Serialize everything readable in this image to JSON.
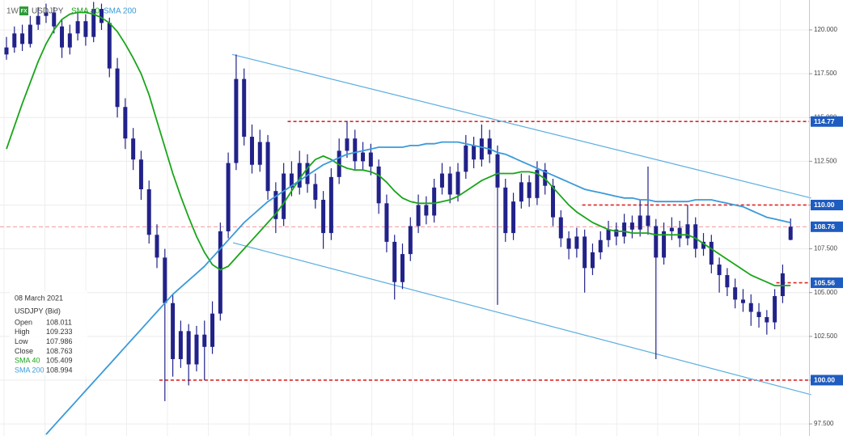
{
  "chart_data": {
    "type": "candlestick",
    "timeframe": "1W",
    "icon": "FX",
    "symbol": "USDJPY",
    "bar_color": "#22228a",
    "ylim": [
      96.81,
      121.71
    ],
    "yticks": [
      {
        "value": 120,
        "label": "120.000"
      },
      {
        "value": 117.5,
        "label": "117.500"
      },
      {
        "value": 115,
        "label": "115.000"
      },
      {
        "value": 112.5,
        "label": "112.500"
      },
      {
        "value": 110,
        "label": "110.000"
      },
      {
        "value": 107.5,
        "label": "107.500"
      },
      {
        "value": 105,
        "label": "105.000"
      },
      {
        "value": 102.5,
        "label": "102.500"
      },
      {
        "value": 100,
        "label": "100.000"
      },
      {
        "value": 97.5,
        "label": "97.500"
      }
    ],
    "grid": true,
    "ohlc": [
      [
        118.6,
        119.6,
        118.3,
        119.0
      ],
      [
        119.0,
        120.2,
        118.7,
        119.8
      ],
      [
        119.8,
        120.3,
        118.8,
        119.2
      ],
      [
        119.2,
        120.8,
        119.0,
        120.3
      ],
      [
        120.3,
        121.3,
        120.0,
        120.8
      ],
      [
        120.8,
        121.5,
        120.4,
        121.0
      ],
      [
        121.0,
        121.3,
        119.8,
        120.2
      ],
      [
        120.2,
        120.6,
        118.4,
        119.0
      ],
      [
        119.0,
        120.3,
        118.6,
        119.8
      ],
      [
        119.8,
        121.0,
        119.4,
        120.5
      ],
      [
        120.5,
        120.9,
        119.1,
        119.6
      ],
      [
        119.6,
        121.6,
        119.3,
        121.2
      ],
      [
        121.2,
        121.5,
        120.0,
        120.4
      ],
      [
        120.4,
        120.7,
        117.3,
        117.8
      ],
      [
        117.8,
        118.4,
        115.0,
        115.6
      ],
      [
        115.6,
        116.1,
        113.2,
        113.8
      ],
      [
        113.8,
        114.4,
        112.0,
        112.6
      ],
      [
        112.6,
        113.1,
        110.3,
        110.9
      ],
      [
        110.9,
        111.4,
        107.8,
        108.3
      ],
      [
        108.3,
        108.9,
        106.4,
        107.0
      ],
      [
        107.0,
        107.5,
        98.8,
        104.4
      ],
      [
        104.4,
        104.9,
        100.2,
        101.2
      ],
      [
        101.2,
        103.4,
        100.7,
        102.8
      ],
      [
        102.8,
        103.2,
        99.7,
        100.9
      ],
      [
        100.9,
        103.1,
        100.5,
        102.6
      ],
      [
        102.6,
        103.4,
        100.0,
        101.9
      ],
      [
        101.9,
        104.5,
        101.5,
        103.8
      ],
      [
        103.8,
        109.0,
        103.4,
        108.5
      ],
      [
        108.5,
        113.0,
        108.1,
        112.4
      ],
      [
        112.4,
        118.6,
        112.0,
        117.2
      ],
      [
        117.2,
        117.8,
        113.4,
        113.9
      ],
      [
        113.9,
        114.6,
        111.8,
        112.3
      ],
      [
        112.3,
        114.3,
        111.9,
        113.6
      ],
      [
        113.6,
        114.0,
        110.3,
        110.8
      ],
      [
        110.8,
        111.3,
        108.4,
        109.2
      ],
      [
        109.2,
        112.4,
        108.8,
        111.8
      ],
      [
        111.8,
        112.5,
        110.5,
        111.0
      ],
      [
        111.0,
        113.1,
        110.6,
        112.4
      ],
      [
        112.4,
        112.9,
        110.7,
        111.2
      ],
      [
        111.2,
        111.8,
        109.8,
        110.3
      ],
      [
        110.3,
        110.8,
        107.5,
        108.4
      ],
      [
        108.4,
        112.1,
        108.0,
        111.6
      ],
      [
        111.6,
        113.8,
        111.2,
        113.1
      ],
      [
        113.1,
        114.8,
        112.7,
        113.8
      ],
      [
        113.8,
        114.3,
        112.0,
        112.5
      ],
      [
        112.5,
        113.6,
        112.0,
        113.0
      ],
      [
        113.0,
        113.5,
        111.7,
        112.2
      ],
      [
        112.2,
        112.6,
        109.5,
        110.1
      ],
      [
        110.1,
        110.6,
        107.3,
        107.9
      ],
      [
        107.9,
        108.3,
        104.6,
        105.6
      ],
      [
        105.6,
        107.8,
        105.2,
        107.2
      ],
      [
        107.2,
        109.3,
        106.8,
        108.8
      ],
      [
        108.8,
        110.6,
        108.4,
        110.0
      ],
      [
        110.0,
        110.5,
        108.9,
        109.4
      ],
      [
        109.4,
        111.5,
        109.0,
        111.0
      ],
      [
        111.0,
        112.4,
        110.6,
        111.8
      ],
      [
        111.8,
        112.2,
        110.1,
        110.6
      ],
      [
        110.6,
        112.4,
        110.2,
        111.9
      ],
      [
        111.9,
        114.0,
        111.5,
        113.4
      ],
      [
        113.4,
        113.9,
        112.1,
        112.6
      ],
      [
        112.6,
        114.6,
        112.2,
        113.8
      ],
      [
        113.8,
        114.3,
        112.4,
        112.9
      ],
      [
        112.9,
        113.4,
        104.3,
        111.0
      ],
      [
        111.0,
        111.5,
        107.9,
        108.4
      ],
      [
        108.4,
        110.7,
        108.0,
        110.2
      ],
      [
        110.2,
        111.8,
        109.8,
        111.3
      ],
      [
        111.3,
        111.7,
        109.9,
        110.4
      ],
      [
        110.4,
        112.5,
        110.0,
        112.0
      ],
      [
        112.0,
        112.4,
        110.6,
        111.1
      ],
      [
        111.1,
        111.5,
        108.8,
        109.3
      ],
      [
        109.3,
        109.7,
        107.6,
        108.1
      ],
      [
        108.1,
        108.5,
        106.9,
        107.5
      ],
      [
        107.5,
        108.7,
        107.0,
        108.2
      ],
      [
        108.2,
        108.6,
        105.0,
        106.4
      ],
      [
        106.4,
        107.8,
        106.0,
        107.3
      ],
      [
        107.3,
        108.5,
        106.9,
        108.0
      ],
      [
        108.0,
        109.1,
        107.6,
        108.6
      ],
      [
        108.6,
        109.0,
        107.7,
        108.2
      ],
      [
        108.2,
        109.5,
        107.8,
        109.0
      ],
      [
        109.0,
        109.4,
        108.1,
        108.6
      ],
      [
        108.6,
        110.3,
        108.2,
        109.4
      ],
      [
        109.4,
        112.2,
        108.3,
        108.8
      ],
      [
        108.8,
        109.2,
        101.2,
        107.0
      ],
      [
        107.0,
        109.0,
        106.6,
        108.5
      ],
      [
        108.5,
        109.3,
        108.0,
        108.7
      ],
      [
        108.7,
        109.1,
        107.6,
        108.1
      ],
      [
        108.1,
        110.0,
        107.7,
        108.9
      ],
      [
        108.9,
        109.3,
        107.0,
        107.5
      ],
      [
        107.5,
        108.4,
        107.1,
        107.9
      ],
      [
        107.9,
        108.3,
        106.1,
        106.6
      ],
      [
        106.6,
        107.0,
        105.0,
        106.0
      ],
      [
        106.0,
        106.4,
        104.8,
        105.3
      ],
      [
        105.3,
        105.8,
        104.1,
        104.6
      ],
      [
        104.6,
        105.2,
        103.9,
        104.4
      ],
      [
        104.4,
        104.9,
        103.1,
        103.9
      ],
      [
        103.9,
        104.4,
        103.0,
        103.6
      ],
      [
        103.6,
        104.0,
        102.6,
        103.3
      ],
      [
        103.3,
        105.2,
        102.9,
        104.8
      ],
      [
        104.8,
        106.6,
        104.4,
        106.1
      ],
      [
        108.011,
        109.233,
        107.986,
        108.763
      ]
    ],
    "series": [
      {
        "name": "SMA 40",
        "color": "#1aa51a",
        "values": [
          113.2,
          114.5,
          115.8,
          117.0,
          118.2,
          119.2,
          120.0,
          120.6,
          120.9,
          121.0,
          121.0,
          120.9,
          120.7,
          120.4,
          119.9,
          119.2,
          118.4,
          117.5,
          116.3,
          114.8,
          113.3,
          111.8,
          110.5,
          109.3,
          108.2,
          107.3,
          106.6,
          106.3,
          106.5,
          107.0,
          107.5,
          108.0,
          108.5,
          109.0,
          109.5,
          110.1,
          110.8,
          111.5,
          112.1,
          112.6,
          112.8,
          112.6,
          112.3,
          112.1,
          112.0,
          112.0,
          111.9,
          111.7,
          111.3,
          110.8,
          110.4,
          110.2,
          110.1,
          110.1,
          110.1,
          110.2,
          110.3,
          110.5,
          110.8,
          111.1,
          111.4,
          111.6,
          111.8,
          111.8,
          111.8,
          111.9,
          111.9,
          111.8,
          111.5,
          111.0,
          110.5,
          110.0,
          109.6,
          109.3,
          109.0,
          108.8,
          108.6,
          108.5,
          108.5,
          108.4,
          108.4,
          108.4,
          108.3,
          108.3,
          108.3,
          108.3,
          108.3,
          108.1,
          107.8,
          107.5,
          107.2,
          106.9,
          106.6,
          106.3,
          106.0,
          105.8,
          105.6,
          105.4,
          105.4,
          105.409
        ]
      },
      {
        "name": "SMA 200",
        "color": "#3a9ad9",
        "values": [
          null,
          null,
          null,
          null,
          null,
          96.9,
          97.4,
          97.9,
          98.4,
          98.9,
          99.4,
          99.9,
          100.4,
          100.9,
          101.4,
          101.9,
          102.4,
          102.9,
          103.4,
          103.9,
          104.4,
          104.9,
          105.3,
          105.7,
          106.1,
          106.5,
          107.0,
          107.5,
          108.0,
          108.5,
          109.0,
          109.4,
          109.8,
          110.2,
          110.5,
          110.8,
          111.1,
          111.4,
          111.7,
          112.0,
          112.3,
          112.5,
          112.7,
          112.9,
          113.0,
          113.1,
          113.2,
          113.3,
          113.3,
          113.3,
          113.3,
          113.4,
          113.4,
          113.5,
          113.5,
          113.6,
          113.6,
          113.6,
          113.5,
          113.4,
          113.3,
          113.2,
          113.0,
          112.9,
          112.7,
          112.5,
          112.3,
          112.1,
          111.9,
          111.7,
          111.5,
          111.3,
          111.1,
          110.9,
          110.8,
          110.7,
          110.6,
          110.5,
          110.4,
          110.4,
          110.3,
          110.3,
          110.2,
          110.2,
          110.2,
          110.2,
          110.2,
          110.3,
          110.3,
          110.3,
          110.2,
          110.1,
          110.0,
          109.9,
          109.7,
          109.5,
          109.3,
          109.2,
          109.1,
          108.994
        ]
      }
    ],
    "trendlines": [
      {
        "color": "#5aaee0",
        "from": [
          28.5,
          118.6
        ],
        "to": [
          101.6,
          110.4
        ]
      },
      {
        "color": "#5aaee0",
        "from": [
          28.6,
          107.85
        ],
        "to": [
          101.6,
          99.17
        ]
      }
    ],
    "levels": [
      {
        "value": 114.77,
        "label": "114.77",
        "from": 35.5,
        "color": "#e02424"
      },
      {
        "value": 110.0,
        "label": "110.00",
        "from": 72.7,
        "color": "#e02424"
      },
      {
        "value": 108.76,
        "label": "108.76",
        "color": "#f29a9a"
      },
      {
        "value": 105.56,
        "label": "105.56",
        "from": 97.2,
        "color": "#e02424"
      },
      {
        "value": 100.0,
        "label": "100.00",
        "from": 19.3,
        "color": "#e02424"
      }
    ],
    "level_label_color": "#1f5cbf",
    "info": {
      "date": "08 March 2021",
      "instrument": "USDJPY (Bid)",
      "rows": [
        {
          "label": "Open",
          "value": 108.011,
          "color": "#333333"
        },
        {
          "label": "High",
          "value": 109.233,
          "color": "#333333"
        },
        {
          "label": "Low",
          "value": 107.986,
          "color": "#333333"
        },
        {
          "label": "Close",
          "value": 108.763,
          "color": "#333333"
        },
        {
          "label": "SMA 40",
          "value": 105.409,
          "color": "#1aa51a"
        },
        {
          "label": "SMA 200",
          "value": 108.994,
          "color": "#3a9ad9"
        }
      ]
    }
  }
}
